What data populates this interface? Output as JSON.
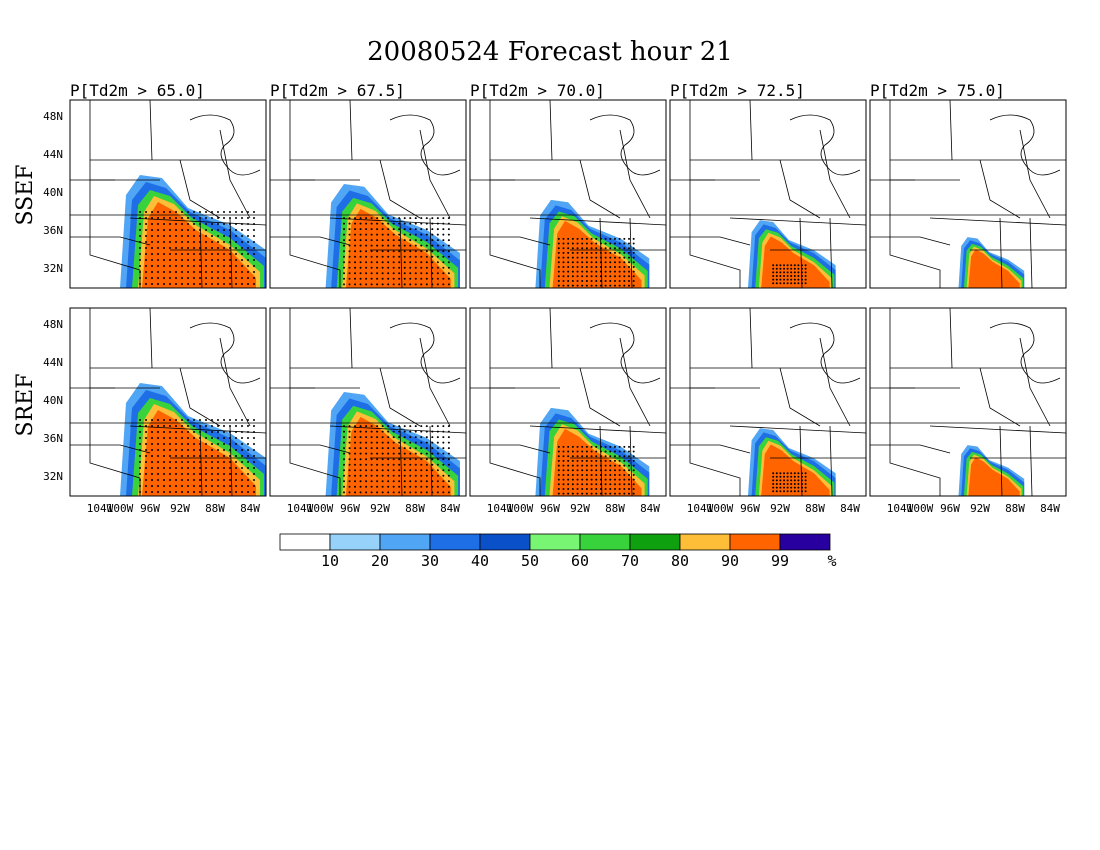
{
  "title": "20080524 Forecast hour 21",
  "column_titles": [
    "P[Td2m > 65.0]",
    "P[Td2m > 67.5]",
    "P[Td2m > 70.0]",
    "P[Td2m > 72.5]",
    "P[Td2m > 75.0]"
  ],
  "row_labels": [
    "SSEF",
    "SREF"
  ],
  "lat_labels": [
    "48N",
    "44N",
    "40N",
    "36N",
    "32N"
  ],
  "lon_labels": [
    "104W",
    "100W",
    "96W",
    "92W",
    "88W",
    "84W"
  ],
  "colorbar": {
    "colors": [
      "#ffffff",
      "#96d2fa",
      "#50a5f5",
      "#1e6ee6",
      "#0a50c8",
      "#78f573",
      "#37d23c",
      "#0fa00f",
      "#ffbe37",
      "#ff6400",
      "#2800a0"
    ],
    "labels": [
      "10",
      "20",
      "30",
      "40",
      "50",
      "60",
      "70",
      "80",
      "90",
      "99"
    ],
    "unit": "%"
  },
  "panels": [
    {
      "row": 0,
      "col": 0,
      "level": 5,
      "stipple": "large"
    },
    {
      "row": 0,
      "col": 1,
      "level": 4,
      "stipple": "large"
    },
    {
      "row": 0,
      "col": 2,
      "level": 3,
      "stipple": "medium"
    },
    {
      "row": 0,
      "col": 3,
      "level": 2,
      "stipple": "small"
    },
    {
      "row": 0,
      "col": 4,
      "level": 1,
      "stipple": "tiny"
    },
    {
      "row": 1,
      "col": 0,
      "level": 5,
      "stipple": "large"
    },
    {
      "row": 1,
      "col": 1,
      "level": 4,
      "stipple": "large"
    },
    {
      "row": 1,
      "col": 2,
      "level": 3,
      "stipple": "medium"
    },
    {
      "row": 1,
      "col": 3,
      "level": 2,
      "stipple": "small"
    },
    {
      "row": 1,
      "col": 4,
      "level": 1,
      "stipple": "tiny"
    }
  ]
}
